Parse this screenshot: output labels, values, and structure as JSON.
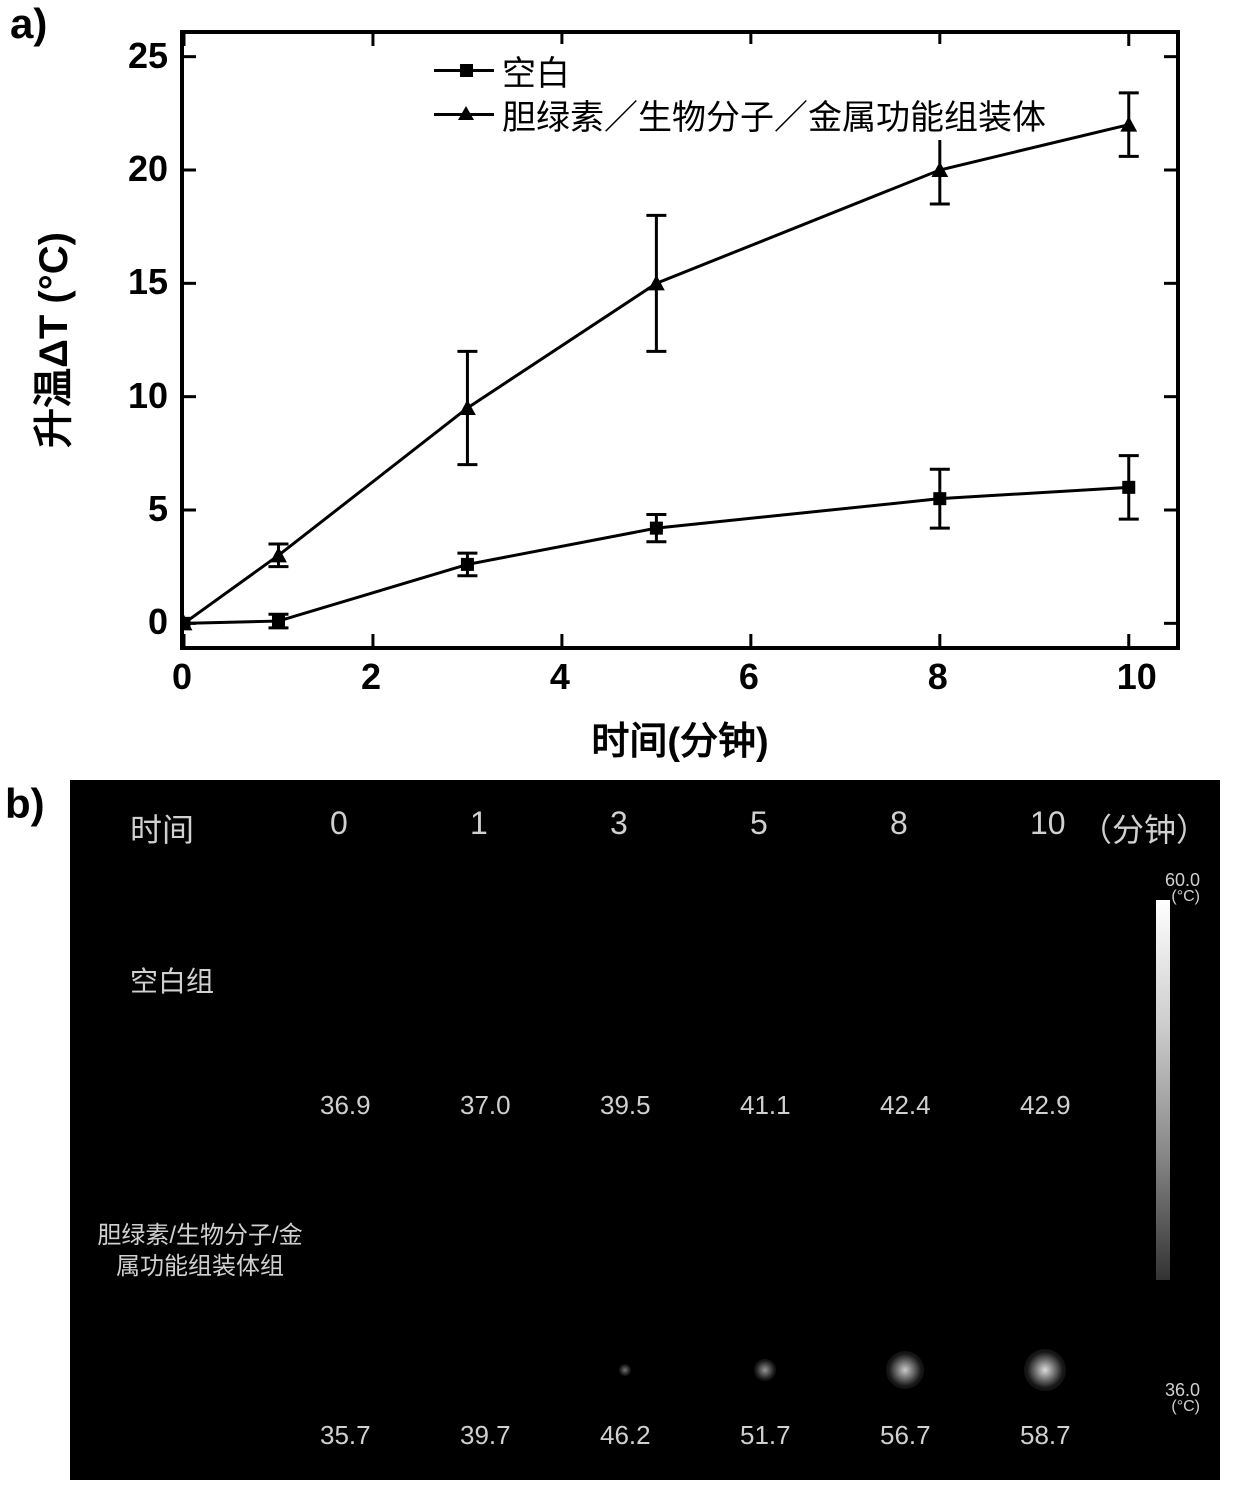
{
  "panel_a": {
    "label": "a)",
    "chart": {
      "type": "line-scatter-errorbar",
      "xlabel": "时间(分钟)",
      "ylabel": "升温ΔT (°C)",
      "xlim": [
        0,
        10.5
      ],
      "ylim": [
        -1,
        26
      ],
      "xticks": [
        0,
        2,
        4,
        6,
        8,
        10
      ],
      "yticks": [
        0,
        5,
        10,
        15,
        20,
        25
      ],
      "xtick_labels": [
        "0",
        "2",
        "4",
        "6",
        "8",
        "10"
      ],
      "ytick_labels": [
        "0",
        "5",
        "10",
        "15",
        "20",
        "25"
      ],
      "background_color": "#ffffff",
      "axis_color": "#000000",
      "axis_width": 4,
      "tick_fontsize": 36,
      "label_fontsize": 40,
      "legend_fontsize": 34,
      "legend_position": "upper-left-inset",
      "series": [
        {
          "name": "空白",
          "marker": "square",
          "marker_size": 13,
          "marker_color": "#000000",
          "line_color": "#000000",
          "line_width": 3,
          "x": [
            0,
            1,
            3,
            5,
            8,
            10
          ],
          "y": [
            0,
            0.1,
            2.6,
            4.2,
            5.5,
            6.0
          ],
          "yerr": [
            0,
            0.3,
            0.5,
            0.6,
            1.3,
            1.4
          ]
        },
        {
          "name": "胆绿素／生物分子／金属功能组装体",
          "marker": "triangle",
          "marker_size": 14,
          "marker_color": "#000000",
          "line_color": "#000000",
          "line_width": 3,
          "x": [
            0,
            1,
            3,
            5,
            8,
            10
          ],
          "y": [
            0,
            3.0,
            9.5,
            15.0,
            20.0,
            22.0
          ],
          "yerr": [
            0,
            0.5,
            2.5,
            3.0,
            1.5,
            1.4
          ]
        }
      ]
    }
  },
  "panel_b": {
    "label": "b)",
    "background_color": "#000000",
    "text_color": "#d0d0d0",
    "header_time_label": "时间",
    "header_unit": "（分钟）",
    "time_points": [
      "0",
      "1",
      "3",
      "5",
      "8",
      "10"
    ],
    "colorbar": {
      "max_label": "60.0",
      "min_label": "36.0",
      "unit": "(°C)"
    },
    "rows": [
      {
        "label": "空白组",
        "values": [
          "36.9",
          "37.0",
          "39.5",
          "41.1",
          "42.4",
          "42.9"
        ]
      },
      {
        "label": "胆绿素/生物分子/金属功能组装体组",
        "values": [
          "35.7",
          "39.7",
          "46.2",
          "51.7",
          "56.7",
          "58.7"
        ]
      }
    ],
    "thermal_spots": [
      {
        "col": 3,
        "size": 12,
        "intensity": 0.2
      },
      {
        "col": 4,
        "size": 22,
        "intensity": 0.4
      },
      {
        "col": 5,
        "size": 38,
        "intensity": 0.7
      },
      {
        "col": 6,
        "size": 42,
        "intensity": 0.8
      }
    ]
  }
}
